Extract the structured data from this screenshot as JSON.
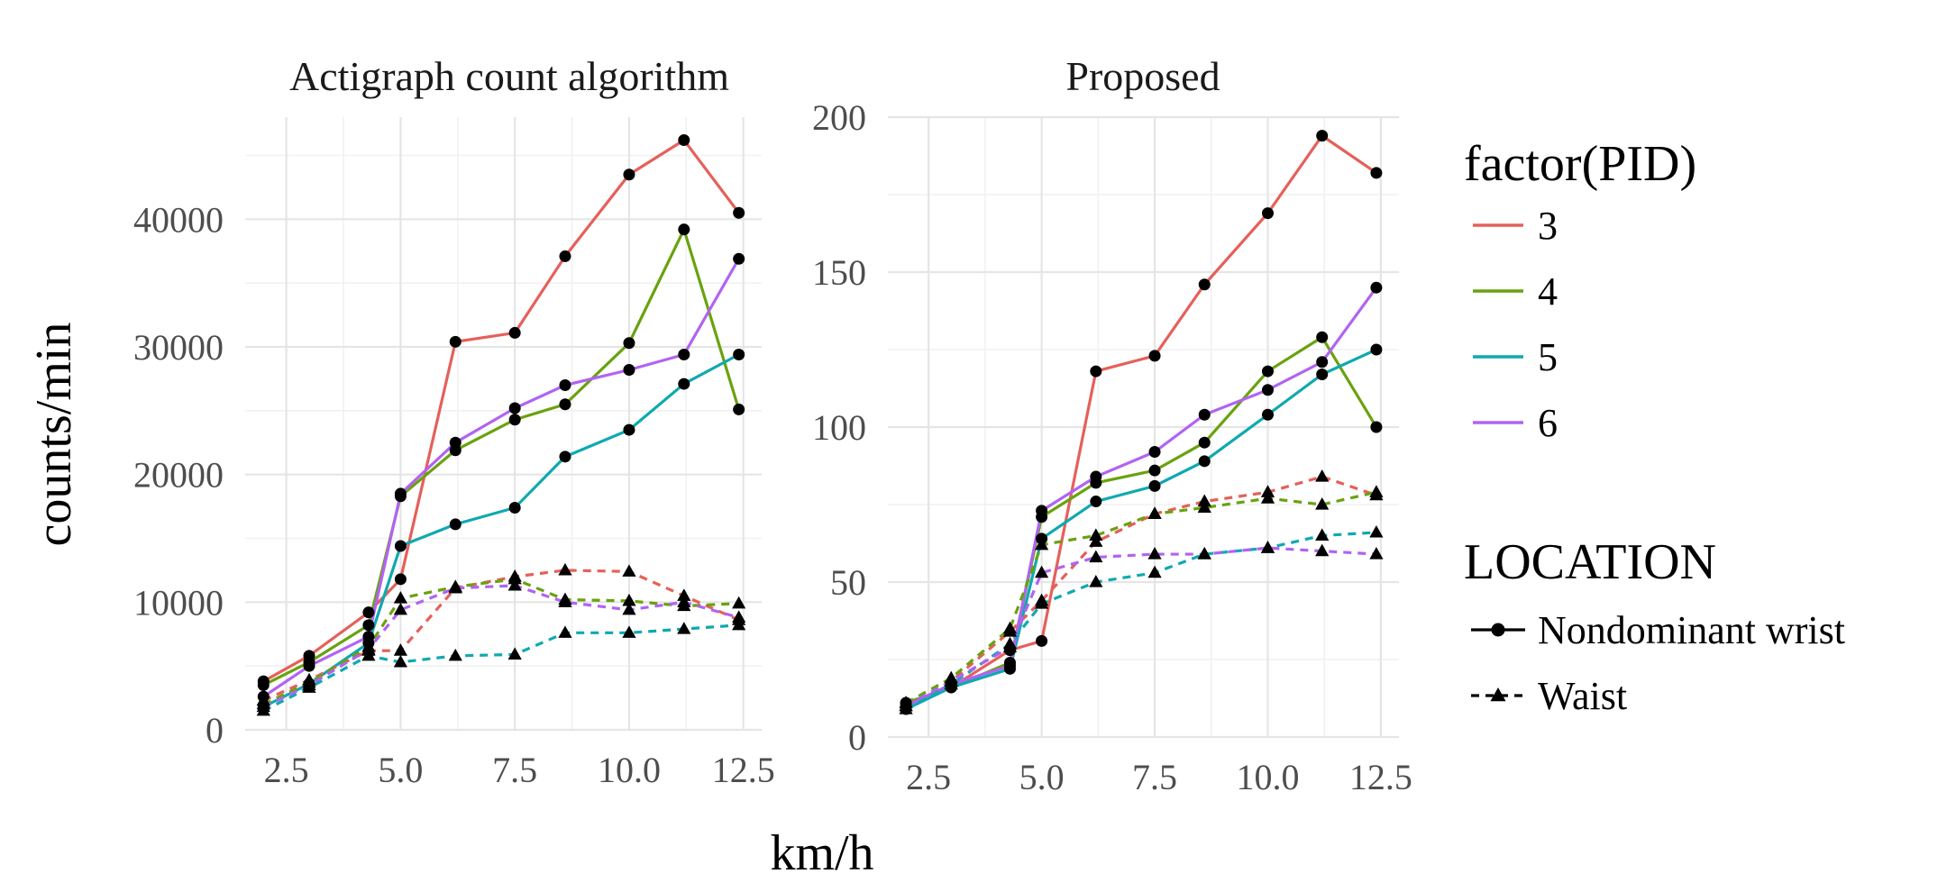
{
  "colors": {
    "pid": {
      "3": "#E5605A",
      "4": "#69A20E",
      "5": "#0FA9B1",
      "6": "#B163F2"
    },
    "marker": "#000000",
    "grid_major": "#e5e5e5",
    "grid_minor": "#f1f1f1"
  },
  "chart_data": {
    "type": "line",
    "xlabel": "km/h",
    "ylabel": "counts/min",
    "x": [
      2,
      3,
      4.3,
      5,
      6.2,
      7.5,
      8.6,
      10,
      11.2,
      12.4
    ],
    "xticks": [
      "2.5",
      "5.0",
      "7.5",
      "10.0",
      "12.5"
    ],
    "xticks_values": [
      2.5,
      5,
      7.5,
      10,
      12.5
    ],
    "xlim": [
      1.6,
      12.9
    ],
    "legend": {
      "placement": "right",
      "color_title": "factor(PID)",
      "color_entries": [
        "3",
        "4",
        "5",
        "6"
      ],
      "linetype_title": "LOCATION",
      "linetype_entries": [
        "Nondominant wrist",
        "Waist"
      ],
      "linetype_markers": [
        "circle",
        "triangle"
      ],
      "linetype_dashes": [
        "solid",
        "dashed"
      ]
    },
    "panels": [
      {
        "title": "Actigraph count algorithm",
        "ylim": [
          0,
          48000
        ],
        "yticks": [
          "0",
          "10000",
          "20000",
          "30000",
          "40000"
        ],
        "yticks_values": [
          0,
          10000,
          20000,
          30000,
          40000
        ],
        "series": [
          {
            "pid": "3",
            "location": "Nondominant wrist",
            "values": [
              3800,
              5800,
              9200,
              11800,
              30400,
              31100,
              37100,
              43500,
              46200,
              40500
            ]
          },
          {
            "pid": "4",
            "location": "Nondominant wrist",
            "values": [
              3500,
              5300,
              8200,
              18300,
              21900,
              24300,
              25500,
              30300,
              39200,
              25100
            ]
          },
          {
            "pid": "5",
            "location": "Nondominant wrist",
            "values": [
              1800,
              3600,
              6800,
              14400,
              16100,
              17400,
              21400,
              23500,
              27100,
              29400
            ]
          },
          {
            "pid": "6",
            "location": "Nondominant wrist",
            "values": [
              2600,
              5000,
              7300,
              18500,
              22500,
              25200,
              27000,
              28200,
              29400,
              36900
            ]
          },
          {
            "pid": "3",
            "location": "Waist",
            "values": [
              2300,
              3900,
              6200,
              6200,
              11100,
              12000,
              12500,
              12400,
              10500,
              8600
            ]
          },
          {
            "pid": "4",
            "location": "Waist",
            "values": [
              2000,
              3700,
              6500,
              10300,
              11200,
              11800,
              10200,
              10100,
              9700,
              9900
            ]
          },
          {
            "pid": "5",
            "location": "Waist",
            "values": [
              1500,
              3300,
              5800,
              5300,
              5800,
              5900,
              7600,
              7600,
              7900,
              8200
            ]
          },
          {
            "pid": "6",
            "location": "Waist",
            "values": [
              1800,
              3500,
              6300,
              9400,
              11100,
              11300,
              10000,
              9400,
              10000,
              8800
            ]
          }
        ]
      },
      {
        "title": "Proposed",
        "ylim": [
          0,
          200
        ],
        "yticks": [
          "0",
          "50",
          "100",
          "150",
          "200"
        ],
        "yticks_values": [
          0,
          50,
          100,
          150,
          200
        ],
        "series": [
          {
            "pid": "3",
            "location": "Nondominant wrist",
            "values": [
              11,
              16,
              28,
              31,
              118,
              123,
              146,
              169,
              194,
              182
            ]
          },
          {
            "pid": "4",
            "location": "Nondominant wrist",
            "values": [
              11,
              16,
              24,
              71,
              82,
              86,
              95,
              118,
              129,
              100
            ]
          },
          {
            "pid": "5",
            "location": "Nondominant wrist",
            "values": [
              9,
              16,
              22,
              64,
              76,
              81,
              89,
              104,
              117,
              125
            ]
          },
          {
            "pid": "6",
            "location": "Nondominant wrist",
            "values": [
              10,
              17,
              23,
              73,
              84,
              92,
              104,
              112,
              121,
              145
            ]
          },
          {
            "pid": "3",
            "location": "Waist",
            "values": [
              10,
              18,
              34,
              44,
              63,
              72,
              76,
              79,
              84,
              78
            ]
          },
          {
            "pid": "4",
            "location": "Waist",
            "values": [
              11,
              19,
              35,
              62,
              65,
              72,
              74,
              77,
              75,
              79
            ]
          },
          {
            "pid": "5",
            "location": "Waist",
            "values": [
              9,
              17,
              30,
              43,
              50,
              53,
              59,
              61,
              65,
              66
            ]
          },
          {
            "pid": "6",
            "location": "Waist",
            "values": [
              10,
              18,
              29,
              53,
              58,
              59,
              59,
              61,
              60,
              59
            ]
          }
        ]
      }
    ]
  }
}
